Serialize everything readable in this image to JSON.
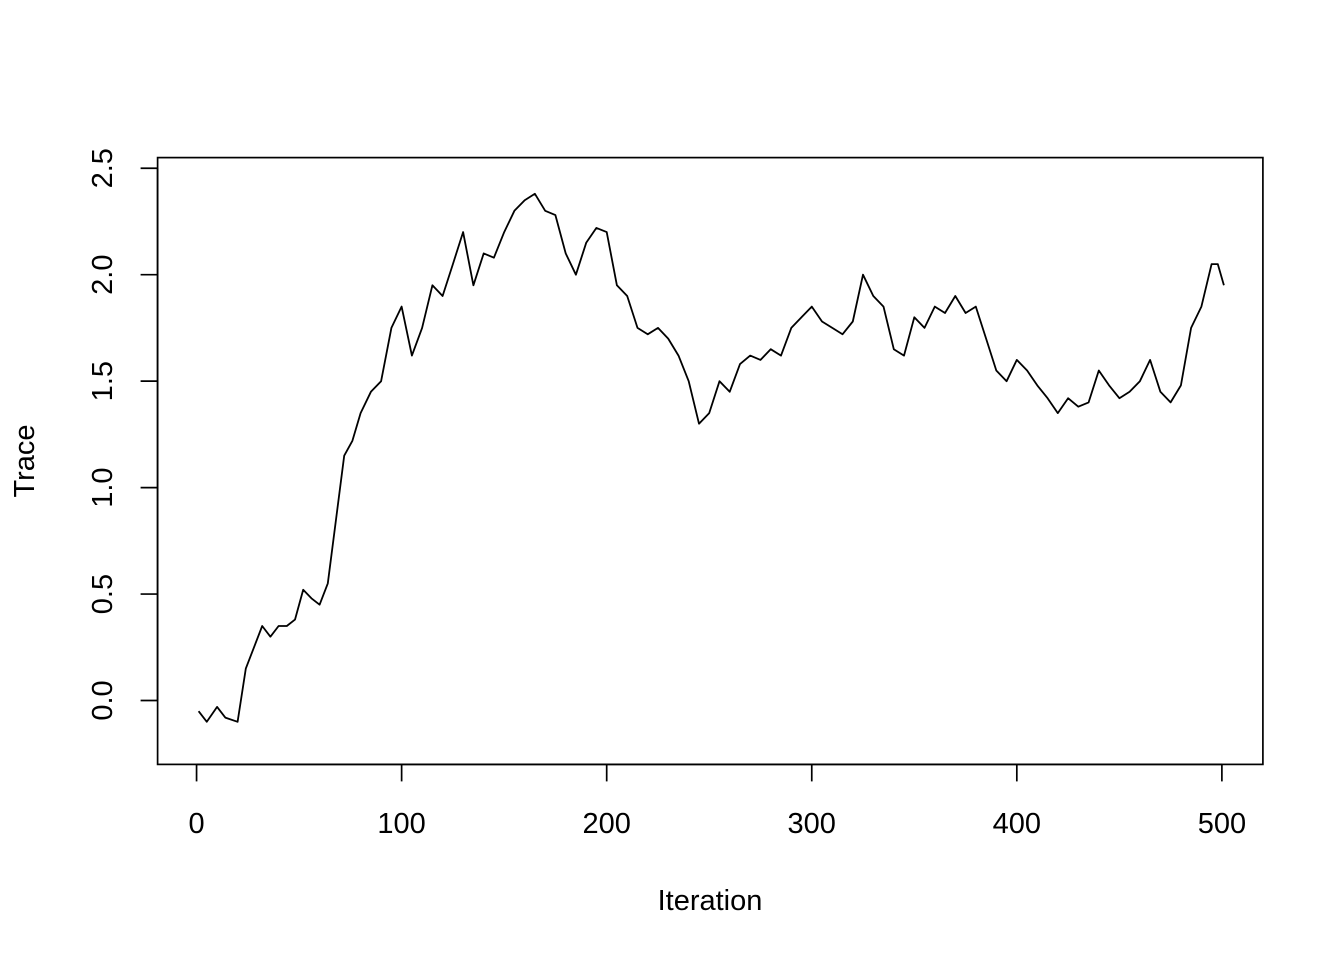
{
  "chart_data": {
    "type": "line",
    "title": "",
    "xlabel": "Iteration",
    "ylabel": "Trace",
    "xlim": [
      -19,
      520
    ],
    "ylim": [
      -0.3,
      2.55
    ],
    "xticks": [
      "0",
      "100",
      "200",
      "300",
      "400",
      "500"
    ],
    "yticks": [
      "0.0",
      "0.5",
      "1.0",
      "1.5",
      "2.0",
      "2.5"
    ],
    "grid": false,
    "legend": "none",
    "line_color": "#000000",
    "series": [
      {
        "x": [
          1,
          5,
          10,
          14,
          20,
          24,
          28,
          32,
          36,
          40,
          44,
          48,
          52,
          56,
          60,
          64,
          68,
          72,
          76,
          80,
          85,
          90,
          95,
          100,
          105,
          110,
          115,
          120,
          125,
          130,
          135,
          140,
          145,
          150,
          155,
          160,
          165,
          170,
          175,
          180,
          185,
          190,
          195,
          200,
          205,
          210,
          215,
          220,
          225,
          230,
          235,
          240,
          245,
          250,
          255,
          260,
          265,
          270,
          275,
          280,
          285,
          290,
          295,
          300,
          305,
          310,
          315,
          320,
          325,
          330,
          335,
          340,
          345,
          350,
          355,
          360,
          365,
          370,
          375,
          380,
          385,
          390,
          395,
          400,
          405,
          410,
          415,
          420,
          425,
          430,
          435,
          440,
          445,
          450,
          455,
          460,
          465,
          470,
          475,
          480,
          485,
          490,
          495,
          498,
          501
        ],
        "values": [
          -0.05,
          -0.1,
          -0.03,
          -0.08,
          -0.1,
          0.15,
          0.25,
          0.35,
          0.3,
          0.35,
          0.35,
          0.38,
          0.52,
          0.48,
          0.45,
          0.55,
          0.85,
          1.15,
          1.22,
          1.35,
          1.45,
          1.5,
          1.75,
          1.85,
          1.62,
          1.75,
          1.95,
          1.9,
          2.05,
          2.2,
          1.95,
          2.1,
          2.08,
          2.2,
          2.3,
          2.35,
          2.38,
          2.3,
          2.28,
          2.1,
          2.0,
          2.15,
          2.22,
          2.2,
          1.95,
          1.9,
          1.75,
          1.72,
          1.75,
          1.7,
          1.62,
          1.5,
          1.3,
          1.35,
          1.5,
          1.45,
          1.58,
          1.62,
          1.6,
          1.65,
          1.62,
          1.75,
          1.8,
          1.85,
          1.78,
          1.75,
          1.72,
          1.78,
          2.0,
          1.9,
          1.85,
          1.65,
          1.62,
          1.8,
          1.75,
          1.85,
          1.82,
          1.9,
          1.82,
          1.85,
          1.7,
          1.55,
          1.5,
          1.6,
          1.55,
          1.48,
          1.42,
          1.35,
          1.42,
          1.38,
          1.4,
          1.55,
          1.48,
          1.42,
          1.45,
          1.5,
          1.6,
          1.45,
          1.4,
          1.48,
          1.75,
          1.85,
          2.05,
          2.05,
          1.95
        ]
      }
    ]
  }
}
